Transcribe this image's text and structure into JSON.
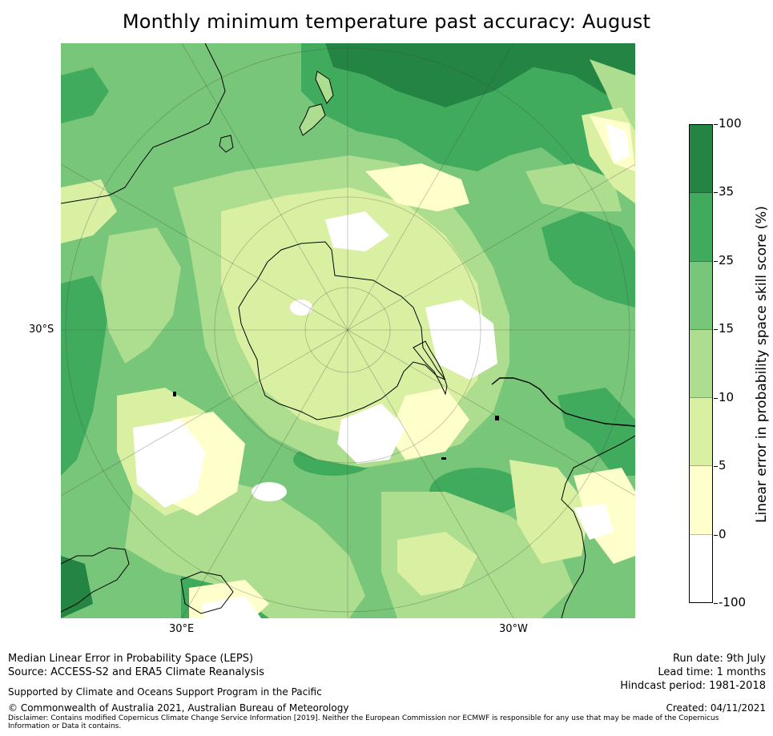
{
  "title": "Monthly minimum temperature past accuracy: August",
  "map": {
    "projection": "south-polar-stereographic",
    "region": "Southern Hemisphere centred on Antarctica",
    "axis_labels": {
      "lat_left": "30°S",
      "lon_bottom_left": "30°E",
      "lon_bottom_right": "30°W"
    },
    "gridlines": true
  },
  "colorbar": {
    "title": "Linear error in probability space skill score (%)",
    "ticks": [
      "100",
      "35",
      "25",
      "15",
      "10",
      "5",
      "0",
      "-100"
    ],
    "bins": [
      {
        "range": "35 to 100",
        "color": "#238443"
      },
      {
        "range": "25 to 35",
        "color": "#41ab5d"
      },
      {
        "range": "15 to 25",
        "color": "#78c679"
      },
      {
        "range": "10 to 15",
        "color": "#addd8e"
      },
      {
        "range": "5 to 10",
        "color": "#d9f0a3"
      },
      {
        "range": "0 to 5",
        "color": "#ffffcc"
      },
      {
        "range": "-100 to 0",
        "color": "#ffffff"
      }
    ]
  },
  "footer": {
    "left_line1": "Median Linear Error in Probability Space (LEPS)",
    "left_line2": "Source: ACCESS-S2 and ERA5 Climate Reanalysis",
    "supported": "Supported by Climate and Oceans Support Program in the Pacific",
    "copyright": "© Commonwealth of Australia 2021, Australian Bureau of Meteorology",
    "disclaimer": "Disclaimer: Contains modified Copernicus Climate Change Service Information [2019]. Neither the European Commission nor ECMWF is responsible for any use that may be made of the Copernicus Information or Data it contains.",
    "run_date": "Run date: 9th July",
    "lead_time": "Lead time: 1 months",
    "hindcast": "Hindcast period: 1981-2018",
    "created": "Created: 04/11/2021"
  }
}
